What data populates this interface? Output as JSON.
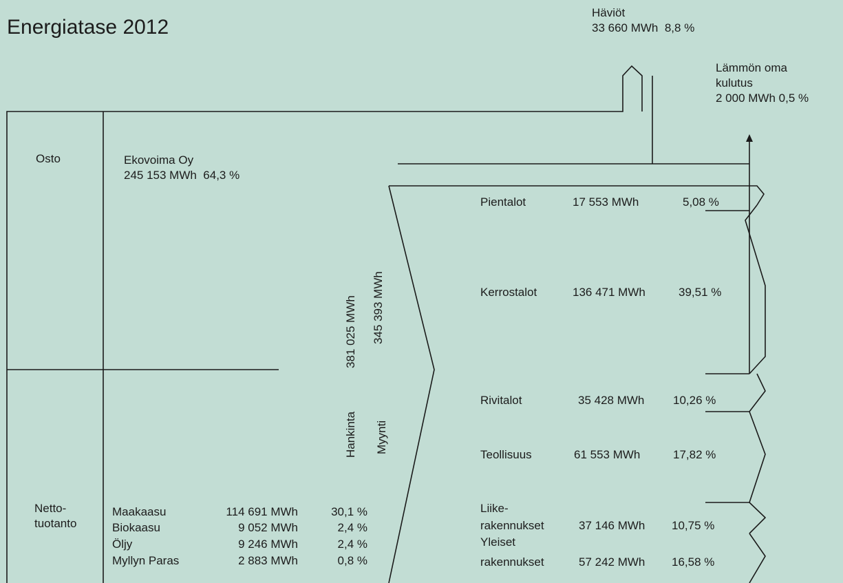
{
  "title": "Energiatase 2012",
  "losses": {
    "label": "Häviöt",
    "value": "33 660  MWh",
    "percent": "8,8  %"
  },
  "own_use": {
    "line1": "Lämmön oma",
    "line2": "kulutus",
    "value": "2 000 MWh",
    "percent": "0,5 %"
  },
  "purchase": {
    "section_label": "Osto",
    "supplier": "Ekovoima Oy",
    "value": "245 153  MWh",
    "percent": "64,3 %"
  },
  "net_production": {
    "section_label_1": "Netto-",
    "section_label_2": "tuotanto",
    "rows": [
      {
        "name": "Maakaasu",
        "value": "114 691 MWh",
        "percent": "30,1 %"
      },
      {
        "name": "Biokaasu",
        "value": "9 052 MWh",
        "percent": "2,4 %"
      },
      {
        "name": "Öljy",
        "value": "9 246 MWh",
        "percent": "2,4 %"
      },
      {
        "name": "Myllyn Paras",
        "value": "2 883 MWh",
        "percent": "0,8 %"
      }
    ]
  },
  "procurement": {
    "label": "Hankinta",
    "value": "381 025  MWh"
  },
  "sales": {
    "label": "Myynti",
    "value": "345 393  MWh"
  },
  "consumers": [
    {
      "name": "Pientalot",
      "value": "17 553 MWh",
      "percent": "5,08 %"
    },
    {
      "name": "Kerrostalot",
      "value": "136 471 MWh",
      "percent": "39,51 %"
    },
    {
      "name": "Rivitalot",
      "value": "35 428 MWh",
      "percent": "10,26 %"
    },
    {
      "name": "Teollisuus",
      "value": "61 553 MWh",
      "percent": "17,82 %"
    },
    {
      "name_1": "Liike-",
      "name_2": "rakennukset",
      "value": "37 146 MWh",
      "percent": "10,75 %"
    },
    {
      "name_1": "Yleiset",
      "name_2": "rakennukset",
      "value": "57 242 MWh",
      "percent": "16,58 %"
    }
  ]
}
